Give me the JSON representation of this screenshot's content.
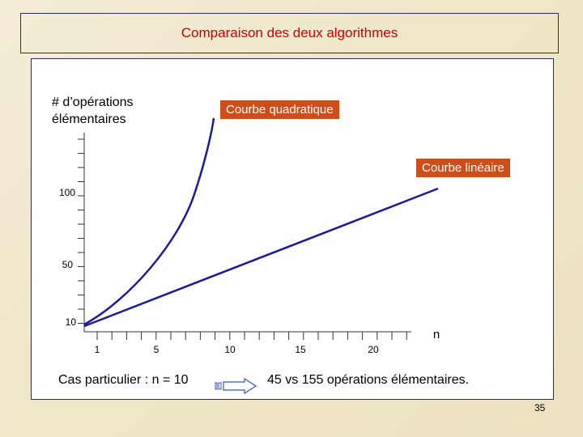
{
  "slide": {
    "title": "Comparaison des deux algorithmes",
    "page_number": "35"
  },
  "diagram": {
    "y_axis_label_line1": "# d’opérations",
    "y_axis_label_line2": "élémentaires",
    "x_axis_label": "n",
    "y_ticks": [
      "100",
      "50",
      "10"
    ],
    "x_ticks": [
      "1",
      "5",
      "10",
      "15",
      "20"
    ],
    "quadratic_label": "Courbe quadratique",
    "linear_label": "Courbe linéaire",
    "colors": {
      "curve": "#1a1aa0",
      "label_background": "#cc4e1b",
      "title": "#cc0000"
    }
  },
  "note": {
    "left": "Cas particulier : n = 10",
    "right": "45 vs 155 opérations élémentaires."
  }
}
